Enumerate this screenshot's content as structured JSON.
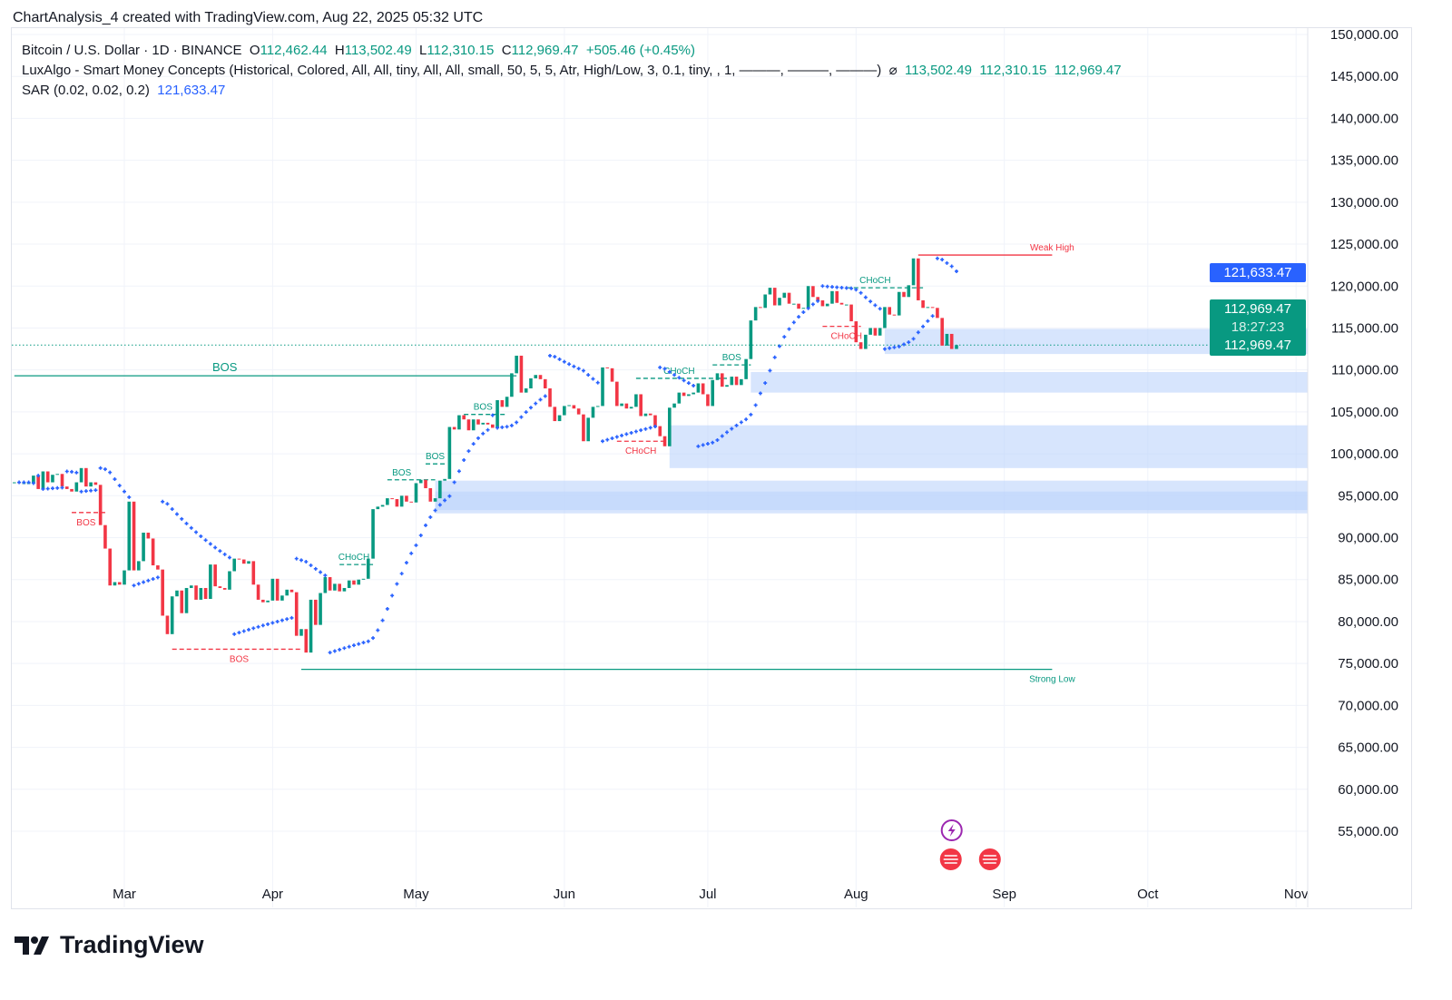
{
  "header": {
    "attribution": "ChartAnalysis_4 created with TradingView.com, Aug 22, 2025 05:32 UTC"
  },
  "legend": {
    "symbol": "Bitcoin / U.S. Dollar · 1D · BINANCE",
    "o_label": "O",
    "o": "112,462.44",
    "h_label": "H",
    "h": "113,502.49",
    "l_label": "L",
    "l": "112,310.15",
    "c_label": "C",
    "c": "112,969.47",
    "change": "+505.46 (+0.45%)",
    "smc": "LuxAlgo - Smart Money Concepts (Historical, Colored, All, All, tiny, All, All, small, 50, 5, 5, Atr, High/Low, 3, 0.1, tiny, , 1, ———, ———, ———)",
    "smc_icon": "hidden-eye-slash-icon",
    "smc_values": [
      "113,502.49",
      "112,310.15",
      "112,969.47"
    ],
    "sar": "SAR (0.02, 0.02, 0.2)",
    "sar_value": "121,633.47"
  },
  "price_badges": {
    "sar": "121,633.47",
    "last": "112,969.47",
    "countdown": "18:27:23",
    "close_line": "112,969.47"
  },
  "colors": {
    "up": "#089981",
    "down": "#f23645",
    "sar": "#2962ff",
    "zone": "#bcd3fb",
    "grid": "#f0f3fa"
  },
  "brand": "TradingView",
  "chart_data": {
    "type": "candlestick",
    "title": "Bitcoin / U.S. Dollar · 1D · BINANCE",
    "start_date": "2025-02-06",
    "first_open": 96500,
    "closes": [
      96600,
      96500,
      96500,
      96500,
      97400,
      95800,
      97900,
      96600,
      97500,
      97600,
      96100,
      95800,
      95500,
      96600,
      98300,
      96100,
      96600,
      96300,
      91500,
      88700,
      84300,
      84700,
      84400,
      86100,
      94300,
      86100,
      87200,
      90600,
      89900,
      86700,
      86200,
      80700,
      78500,
      83000,
      83700,
      81000,
      84000,
      84300,
      82600,
      84000,
      82700,
      86800,
      84200,
      84000,
      83800,
      86000,
      87500,
      87400,
      86900,
      87200,
      84400,
      82600,
      82300,
      82500,
      85100,
      82500,
      83100,
      83800,
      83500,
      78300,
      79100,
      76300,
      82600,
      79600,
      83400,
      85300,
      83700,
      84500,
      83600,
      84000,
      84900,
      84400,
      85000,
      85100,
      87500,
      93400,
      93700,
      93900,
      94700,
      94600,
      93700,
      95000,
      94300,
      94200,
      96500,
      96900,
      95900,
      94300,
      94700,
      96800,
      97000,
      103200,
      102900,
      104600,
      104100,
      102800,
      104100,
      103500,
      103700,
      103500,
      103100,
      106400,
      105600,
      106800,
      109600,
      111700,
      107300,
      107800,
      109000,
      109400,
      108900,
      107800,
      105600,
      103900,
      104600,
      105700,
      105800,
      105400,
      104700,
      101500,
      104300,
      105600,
      105700,
      110300,
      110200,
      108600,
      105700,
      106000,
      105400,
      105600,
      107100,
      104500,
      104800,
      104600,
      103300,
      102100,
      100900,
      105500,
      106000,
      107300,
      106900,
      107100,
      107300,
      108400,
      107100,
      105700,
      108800,
      109600,
      108000,
      108200,
      109200,
      108200,
      108900,
      111300,
      115900,
      117500,
      117400,
      119000,
      119800,
      117700,
      118600,
      119200,
      117900,
      117900,
      117300,
      117400,
      120000,
      118700,
      118300,
      117600,
      117900,
      119400,
      118000,
      117800,
      117800,
      115800,
      113300,
      112500,
      114200,
      115000,
      114100,
      115000,
      117500,
      116600,
      116500,
      119300,
      118700,
      120100,
      123300,
      118300,
      117400,
      117500,
      117400,
      116200,
      112900,
      114300,
      112500,
      112969.47
    ],
    "x_ticks": [
      {
        "label": "Mar",
        "day": 23
      },
      {
        "label": "Apr",
        "day": 54
      },
      {
        "label": "May",
        "day": 84
      },
      {
        "label": "Jun",
        "day": 115
      },
      {
        "label": "Jul",
        "day": 145
      },
      {
        "label": "Aug",
        "day": 176
      },
      {
        "label": "Sep",
        "day": 207
      },
      {
        "label": "Oct",
        "day": 237
      },
      {
        "label": "Nov",
        "day": 268
      }
    ],
    "y_ticks": [
      "55,000.00",
      "60,000.00",
      "65,000.00",
      "70,000.00",
      "75,000.00",
      "80,000.00",
      "85,000.00",
      "90,000.00",
      "95,000.00",
      "100,000.00",
      "105,000.00",
      "110,000.00",
      "115,000.00",
      "120,000.00",
      "125,000.00",
      "130,000.00",
      "135,000.00",
      "140,000.00",
      "145,000.00",
      "150,000.00"
    ],
    "ylim": [
      50000,
      151000
    ],
    "grid": true,
    "sar_params": [
      0.02,
      0.02,
      0.2
    ],
    "zones": [
      {
        "from_day": 182,
        "top": 114900,
        "bottom": 111900
      },
      {
        "from_day": 154,
        "top": 109750,
        "bottom": 107300
      },
      {
        "from_day": 137,
        "top": 103400,
        "bottom": 98300
      },
      {
        "from_day": 88,
        "top": 96800,
        "bottom": 92900
      },
      {
        "from_day": 88,
        "top": 95500,
        "bottom": 93300
      }
    ],
    "levels": [
      {
        "label": "BOS",
        "price": 109300,
        "from_day": 0,
        "to_day": 105,
        "color": "#089981",
        "label_day": 44,
        "label_pos": "above"
      },
      {
        "label": "Weak High",
        "price": 123700,
        "from_day": 189,
        "to_day": 217,
        "color": "#f23645",
        "label_day": 217,
        "label_pos": "above"
      },
      {
        "label": "Strong Low",
        "price": 74300,
        "from_day": 60,
        "to_day": 217,
        "color": "#089981",
        "label_day": 217,
        "label_pos": "below"
      },
      {
        "label": "BOS",
        "price": 76700,
        "from_day": 33,
        "to_day": 60,
        "color": "#f23645",
        "label_day": 47,
        "label_pos": "below",
        "dashed": true
      },
      {
        "label": "BOS",
        "price": 93000,
        "from_day": 12,
        "to_day": 19,
        "color": "#f23645",
        "label_day": 15,
        "label_pos": "below",
        "dashed": true
      },
      {
        "label": "CHoCH",
        "price": 86800,
        "from_day": 68,
        "to_day": 75,
        "color": "#089981",
        "label_day": 71,
        "label_pos": "above",
        "dashed": true
      },
      {
        "label": "BOS",
        "price": 96900,
        "from_day": 78,
        "to_day": 88,
        "color": "#089981",
        "label_day": 81,
        "label_pos": "above",
        "dashed": true
      },
      {
        "label": "BOS",
        "price": 98800,
        "from_day": 86,
        "to_day": 90,
        "color": "#089981",
        "label_day": 88,
        "label_pos": "above",
        "dashed": true
      },
      {
        "label": "BOS",
        "price": 104700,
        "from_day": 94,
        "to_day": 103,
        "color": "#089981",
        "label_day": 98,
        "label_pos": "above",
        "dashed": true
      },
      {
        "label": "CHoCH",
        "price": 101500,
        "from_day": 126,
        "to_day": 136,
        "color": "#f23645",
        "label_day": 131,
        "label_pos": "below",
        "dashed": true
      },
      {
        "label": "CHoCH",
        "price": 109000,
        "from_day": 130,
        "to_day": 149,
        "color": "#089981",
        "label_day": 139,
        "label_pos": "above",
        "dashed": true
      },
      {
        "label": "BOS",
        "price": 110600,
        "from_day": 146,
        "to_day": 154,
        "color": "#089981",
        "label_day": 150,
        "label_pos": "above",
        "dashed": true
      },
      {
        "label": "CHoCH",
        "price": 115200,
        "from_day": 169,
        "to_day": 177,
        "color": "#f23645",
        "label_day": 174,
        "label_pos": "below",
        "dashed": true
      },
      {
        "label": "CHoCH",
        "price": 119800,
        "from_day": 174,
        "to_day": 190,
        "color": "#089981",
        "label_day": 180,
        "label_pos": "above",
        "dashed": true
      }
    ],
    "last_price": 112969.47,
    "sar_last": 121633.47
  },
  "events": [
    {
      "icon": "lightning-event-icon",
      "day": 196
    },
    {
      "icon": "us-flag-economic-event-icon",
      "day": 196
    },
    {
      "icon": "us-flag-economic-event-icon",
      "day": 200
    }
  ]
}
